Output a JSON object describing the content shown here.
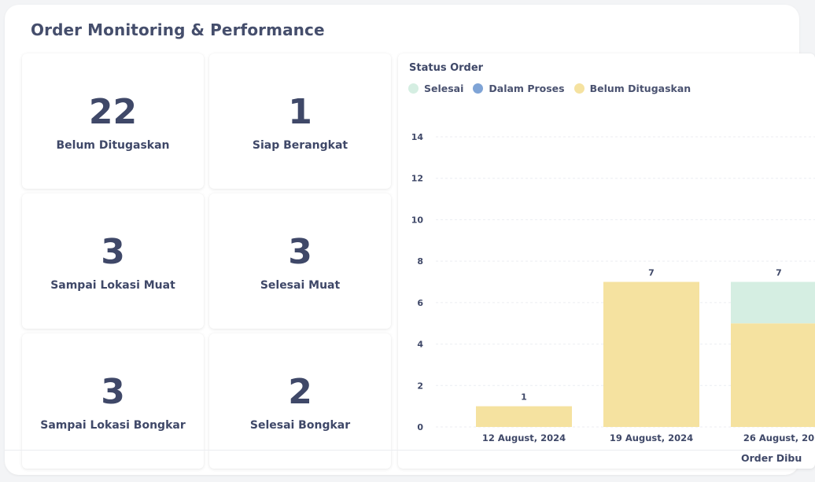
{
  "header": {
    "title": "Order Monitoring & Performance"
  },
  "cards": [
    {
      "value": "22",
      "label": "Belum Ditugaskan"
    },
    {
      "value": "1",
      "label": "Siap Berangkat"
    },
    {
      "value": "3",
      "label": "Sampai Lokasi Muat"
    },
    {
      "value": "3",
      "label": "Selesai Muat"
    },
    {
      "value": "3",
      "label": "Sampai Lokasi Bongkar"
    },
    {
      "value": "2",
      "label": "Selesai Bongkar"
    }
  ],
  "chart": {
    "title": "Status Order",
    "legend": [
      {
        "label": "Selesai",
        "color": "#d5eee2"
      },
      {
        "label": "Dalam Proses",
        "color": "#7fa4d6"
      },
      {
        "label": "Belum Ditugaskan",
        "color": "#f5e2a0"
      }
    ],
    "x_axis_title": "Order Dibu"
  },
  "chart_data": {
    "type": "bar",
    "stacked": true,
    "title": "Status Order",
    "xlabel": "Order Dibu",
    "ylabel": "",
    "ylim": [
      0,
      14
    ],
    "yticks": [
      0,
      2,
      4,
      6,
      8,
      10,
      12,
      14
    ],
    "categories": [
      "12 August, 2024",
      "19 August, 2024",
      "26 August, 20"
    ],
    "series": [
      {
        "name": "Belum Ditugaskan",
        "color": "#f5e2a0",
        "values": [
          1,
          7,
          5
        ]
      },
      {
        "name": "Dalam Proses",
        "color": "#7fa4d6",
        "values": [
          0,
          0,
          0
        ]
      },
      {
        "name": "Selesai",
        "color": "#d5eee2",
        "values": [
          0,
          0,
          2
        ]
      }
    ],
    "totals": [
      1,
      7,
      7
    ],
    "grid": true,
    "legend_position": "top-left"
  }
}
